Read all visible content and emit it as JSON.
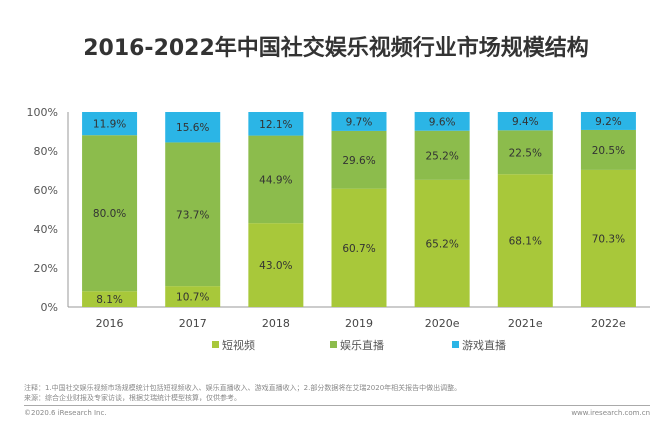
{
  "chart_data": {
    "type": "bar",
    "stacked": true,
    "title": "2016-2022年中国社交娱乐视频行业市场规模结构",
    "categories": [
      "2016",
      "2017",
      "2018",
      "2019",
      "2020e",
      "2021e",
      "2022e"
    ],
    "series": [
      {
        "name": "短视频",
        "color": "#a8c83a",
        "values": [
          8.1,
          10.7,
          43.0,
          60.7,
          65.2,
          68.1,
          70.3
        ]
      },
      {
        "name": "娱乐直播",
        "color": "#8cbc4c",
        "values": [
          80.0,
          73.7,
          44.9,
          29.6,
          25.2,
          22.5,
          20.5
        ]
      },
      {
        "name": "游戏直播",
        "color": "#2bb5e6",
        "values": [
          11.9,
          15.6,
          12.1,
          9.7,
          9.6,
          9.4,
          9.2
        ]
      }
    ],
    "yticks": [
      "0%",
      "20%",
      "40%",
      "60%",
      "80%",
      "100%"
    ],
    "ylim": [
      0,
      100
    ],
    "legend_position": "bottom",
    "grid": false
  },
  "footer": {
    "note": "注释：1.中国社交娱乐视频市场规模统计包括短视频收入、娱乐直播收入、游戏直播收入；2.部分数据将在艾瑞2020年相关报告中做出调整。",
    "source": "来源：综合企业财报及专家访谈，根据艾瑞统计模型核算，仅供参考。",
    "copyright": "©2020.6 iResearch Inc.",
    "url": "www.iresearch.com.cn"
  }
}
